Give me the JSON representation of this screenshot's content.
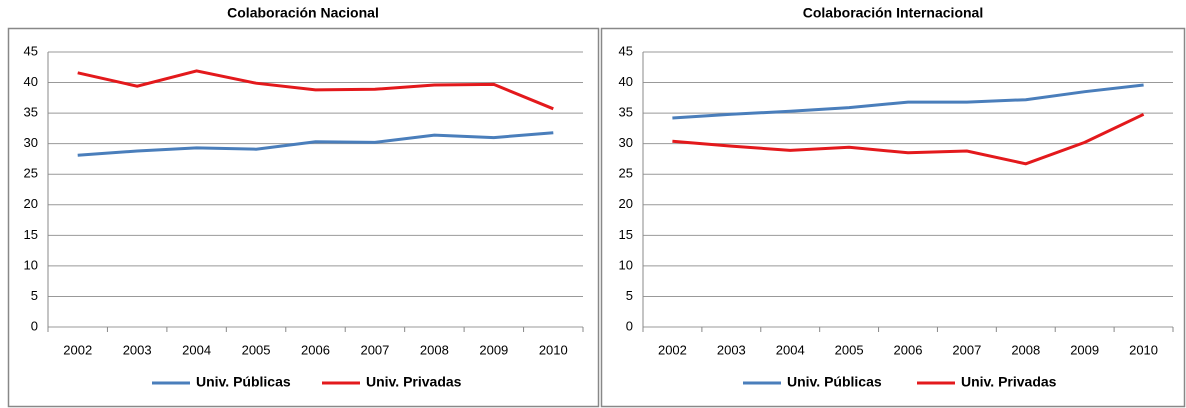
{
  "chart_data": [
    {
      "type": "line",
      "title": "Colaboración Nacional",
      "categories": [
        "2002",
        "2003",
        "2004",
        "2005",
        "2006",
        "2007",
        "2008",
        "2009",
        "2010"
      ],
      "series": [
        {
          "name": "Univ. Públicas",
          "color": "#4a7ebb",
          "values": [
            28.1,
            28.8,
            29.3,
            29.1,
            30.3,
            30.2,
            31.4,
            31.0,
            31.8
          ]
        },
        {
          "name": "Univ. Privadas",
          "color": "#e3191c",
          "values": [
            41.6,
            39.4,
            41.9,
            39.9,
            38.8,
            38.9,
            39.6,
            39.7,
            35.7
          ]
        }
      ],
      "ylim": [
        0,
        45
      ],
      "yticks": [
        0,
        5,
        10,
        15,
        20,
        25,
        30,
        35,
        40,
        45
      ],
      "grid": true,
      "legend": "bottom"
    },
    {
      "type": "line",
      "title": "Colaboración Internacional",
      "categories": [
        "2002",
        "2003",
        "2004",
        "2005",
        "2006",
        "2007",
        "2008",
        "2009",
        "2010"
      ],
      "series": [
        {
          "name": "Univ. Públicas",
          "color": "#4a7ebb",
          "values": [
            34.2,
            34.8,
            35.3,
            35.9,
            36.8,
            36.8,
            37.2,
            38.5,
            39.6
          ]
        },
        {
          "name": "Univ. Privadas",
          "color": "#e3191c",
          "values": [
            30.4,
            29.6,
            28.9,
            29.4,
            28.5,
            28.8,
            26.7,
            30.2,
            34.8
          ]
        }
      ],
      "ylim": [
        0,
        45
      ],
      "yticks": [
        0,
        5,
        10,
        15,
        20,
        25,
        30,
        35,
        40,
        45
      ],
      "grid": true,
      "legend": "bottom"
    }
  ]
}
